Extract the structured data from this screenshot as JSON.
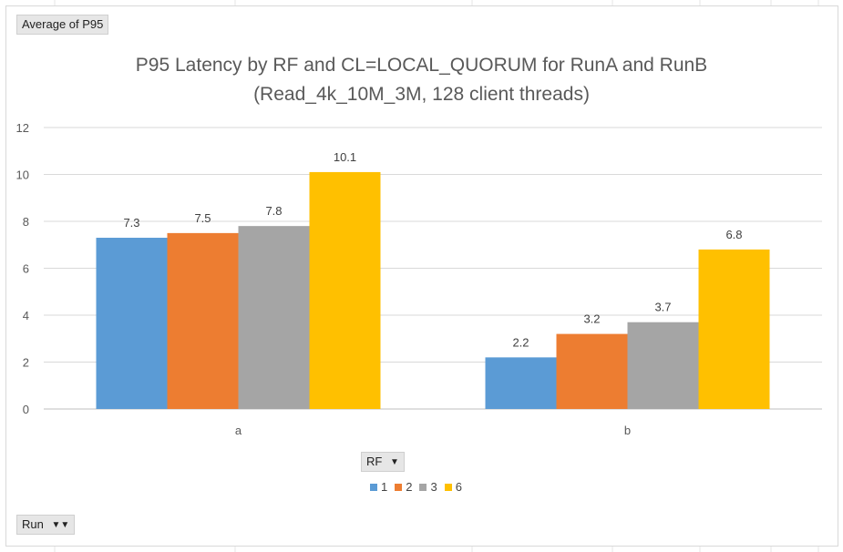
{
  "pivot": {
    "value_field": "Average of P95",
    "legend_field": "RF",
    "axis_field": "Run"
  },
  "chart_data": {
    "type": "bar",
    "title": "P95 Latency by RF and CL=LOCAL_QUORUM for RunA and RunB",
    "subtitle": "(Read_4k_10M_3M, 128 client threads)",
    "categories": [
      "a",
      "b"
    ],
    "series": [
      {
        "name": "1",
        "color": "#5b9bd5",
        "values": [
          7.3,
          2.2
        ]
      },
      {
        "name": "2",
        "color": "#ed7d31",
        "values": [
          7.5,
          3.2
        ]
      },
      {
        "name": "3",
        "color": "#a5a5a5",
        "values": [
          7.8,
          3.7
        ]
      },
      {
        "name": "6",
        "color": "#ffc000",
        "values": [
          10.1,
          6.8
        ]
      }
    ],
    "ylim": [
      0,
      12
    ],
    "yticks": [
      0,
      2,
      4,
      6,
      8,
      10,
      12
    ],
    "grid": true,
    "data_labels": true,
    "legend_position": "bottom",
    "xlabel": "",
    "ylabel": ""
  }
}
